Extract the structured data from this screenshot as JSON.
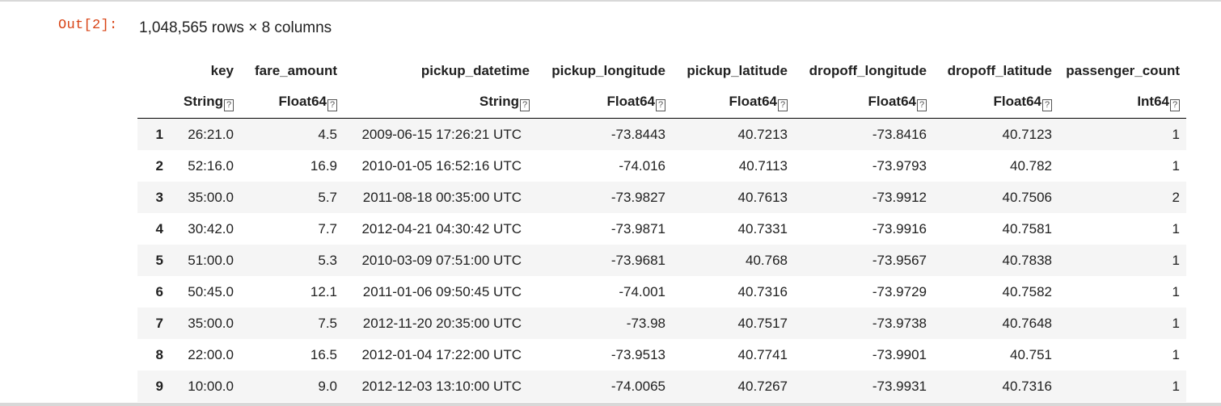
{
  "output": {
    "prompt": "Out[2]:",
    "summary": "1,048,565 rows × 8 columns"
  },
  "table": {
    "headers": [
      "key",
      "fare_amount",
      "pickup_datetime",
      "pickup_longitude",
      "pickup_latitude",
      "dropoff_longitude",
      "dropoff_latitude",
      "passenger_count"
    ],
    "types": [
      "String",
      "Float64",
      "String",
      "Float64",
      "Float64",
      "Float64",
      "Float64",
      "Int64"
    ],
    "type_marker": "?",
    "rows": [
      {
        "idx": "1",
        "cells": [
          "26:21.0",
          "4.5",
          "2009-06-15 17:26:21 UTC",
          "-73.8443",
          "40.7213",
          "-73.8416",
          "40.7123",
          "1"
        ]
      },
      {
        "idx": "2",
        "cells": [
          "52:16.0",
          "16.9",
          "2010-01-05 16:52:16 UTC",
          "-74.016",
          "40.7113",
          "-73.9793",
          "40.782",
          "1"
        ]
      },
      {
        "idx": "3",
        "cells": [
          "35:00.0",
          "5.7",
          "2011-08-18 00:35:00 UTC",
          "-73.9827",
          "40.7613",
          "-73.9912",
          "40.7506",
          "2"
        ]
      },
      {
        "idx": "4",
        "cells": [
          "30:42.0",
          "7.7",
          "2012-04-21 04:30:42 UTC",
          "-73.9871",
          "40.7331",
          "-73.9916",
          "40.7581",
          "1"
        ]
      },
      {
        "idx": "5",
        "cells": [
          "51:00.0",
          "5.3",
          "2010-03-09 07:51:00 UTC",
          "-73.9681",
          "40.768",
          "-73.9567",
          "40.7838",
          "1"
        ]
      },
      {
        "idx": "6",
        "cells": [
          "50:45.0",
          "12.1",
          "2011-01-06 09:50:45 UTC",
          "-74.001",
          "40.7316",
          "-73.9729",
          "40.7582",
          "1"
        ]
      },
      {
        "idx": "7",
        "cells": [
          "35:00.0",
          "7.5",
          "2012-11-20 20:35:00 UTC",
          "-73.98",
          "40.7517",
          "-73.9738",
          "40.7648",
          "1"
        ]
      },
      {
        "idx": "8",
        "cells": [
          "22:00.0",
          "16.5",
          "2012-01-04 17:22:00 UTC",
          "-73.9513",
          "40.7741",
          "-73.9901",
          "40.751",
          "1"
        ]
      },
      {
        "idx": "9",
        "cells": [
          "10:00.0",
          "9.0",
          "2012-12-03 13:10:00 UTC",
          "-74.0065",
          "40.7267",
          "-73.9931",
          "40.7316",
          "1"
        ]
      }
    ]
  }
}
